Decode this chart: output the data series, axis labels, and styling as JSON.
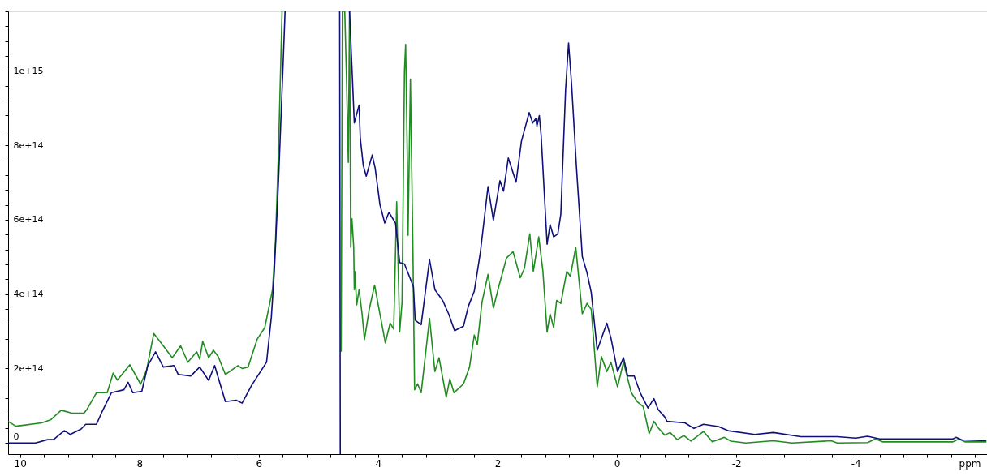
{
  "chart_data": {
    "type": "line",
    "xlabel": "ppm",
    "xlim": [
      10.2,
      -6.2
    ],
    "xticks": [
      10,
      {
        "value": 9.6,
        "label": null
      },
      {
        "value": 9.2,
        "label": null
      },
      {
        "value": 8.8,
        "label": null
      },
      {
        "value": 8.4,
        "label": null
      },
      8,
      {
        "value": 7.6,
        "label": null
      },
      {
        "value": 7.2,
        "label": null
      },
      {
        "value": 6.8,
        "label": null
      },
      {
        "value": 6.4,
        "label": null
      },
      6,
      {
        "value": 5.6,
        "label": null
      },
      {
        "value": 5.2,
        "label": null
      },
      {
        "value": 4.8,
        "label": null
      },
      {
        "value": 4.4,
        "label": null
      },
      4,
      {
        "value": 3.6,
        "label": null
      },
      {
        "value": 3.2,
        "label": null
      },
      {
        "value": 2.8,
        "label": null
      },
      {
        "value": 2.4,
        "label": null
      },
      2,
      {
        "value": 1.6,
        "label": null
      },
      {
        "value": 1.2,
        "label": null
      },
      {
        "value": 0.8,
        "label": null
      },
      {
        "value": 0.4,
        "label": null
      },
      0,
      {
        "value": -0.4,
        "label": null
      },
      {
        "value": -0.8,
        "label": null
      },
      {
        "value": -1.2,
        "label": null
      },
      {
        "value": -1.6,
        "label": null
      },
      -2,
      {
        "value": -2.4,
        "label": null
      },
      {
        "value": -2.8,
        "label": null
      },
      {
        "value": -3.2,
        "label": null
      },
      {
        "value": -3.6,
        "label": null
      },
      -4,
      {
        "value": -4.4,
        "label": null
      },
      {
        "value": -4.8,
        "label": null
      },
      {
        "value": -5.2,
        "label": null
      },
      {
        "value": -5.6,
        "label": null
      },
      {
        "value": -6,
        "label": null
      }
    ],
    "ylim": [
      -30000000000000.0,
      1160000000000000.0
    ],
    "yticks": [
      0,
      {
        "value": 40000000000000.0,
        "label": null
      },
      {
        "value": 80000000000000.0,
        "label": null
      },
      {
        "value": 120000000000000.0,
        "label": null
      },
      {
        "value": 160000000000000.0,
        "label": null
      },
      {
        "value": 200000000000000.0,
        "label": "2e+14"
      },
      {
        "value": 240000000000000.0,
        "label": null
      },
      {
        "value": 280000000000000.0,
        "label": null
      },
      {
        "value": 320000000000000.0,
        "label": null
      },
      {
        "value": 360000000000000.0,
        "label": null
      },
      {
        "value": 400000000000000.0,
        "label": "4e+14"
      },
      {
        "value": 440000000000000.0,
        "label": null
      },
      {
        "value": 480000000000000.0,
        "label": null
      },
      {
        "value": 520000000000000.0,
        "label": null
      },
      {
        "value": 560000000000000.0,
        "label": null
      },
      {
        "value": 600000000000000.0,
        "label": "6e+14"
      },
      {
        "value": 640000000000000.0,
        "label": null
      },
      {
        "value": 680000000000000.0,
        "label": null
      },
      {
        "value": 720000000000000.0,
        "label": null
      },
      {
        "value": 760000000000000.0,
        "label": null
      },
      {
        "value": 800000000000000.0,
        "label": "8e+14"
      },
      {
        "value": 840000000000000.0,
        "label": null
      },
      {
        "value": 880000000000000.0,
        "label": null
      },
      {
        "value": 920000000000000.0,
        "label": null
      },
      {
        "value": 960000000000000.0,
        "label": null
      },
      {
        "value": 1000000000000000.0,
        "label": "1e+15"
      },
      {
        "value": 1040000000000000.0,
        "label": null
      },
      {
        "value": 1080000000000000.0,
        "label": null
      },
      {
        "value": 1120000000000000.0,
        "label": null
      },
      {
        "value": 1160000000000000.0,
        "label": null
      }
    ],
    "grid": false,
    "marker": "none",
    "line_style": "solid",
    "series": [
      {
        "color": "#228b22",
        "x": [
          10.2,
          10.07,
          9.64,
          9.49,
          9.31,
          9.13,
          8.93,
          8.88,
          8.72,
          8.54,
          8.44,
          8.37,
          8.16,
          7.98,
          7.88,
          7.76,
          7.6,
          7.45,
          7.31,
          7.19,
          7.04,
          6.99,
          6.94,
          6.84,
          6.76,
          6.68,
          6.56,
          6.35,
          6.28,
          6.18,
          6.03,
          5.9,
          5.77,
          5.72,
          5.67,
          5.61,
          5.2,
          4.62,
          4.6,
          4.56,
          4.53,
          4.5,
          4.48,
          4.46,
          4.44,
          4.41,
          4.4,
          4.39,
          4.36,
          4.32,
          4.27,
          4.23,
          4.15,
          4.06,
          3.99,
          3.88,
          3.8,
          3.74,
          3.69,
          3.64,
          3.6,
          3.56,
          3.54,
          3.51,
          3.5,
          3.46,
          3.42,
          3.39,
          3.34,
          3.28,
          3.14,
          3.05,
          2.98,
          2.86,
          2.8,
          2.73,
          2.57,
          2.47,
          2.39,
          2.34,
          2.26,
          2.16,
          2.07,
          1.98,
          1.85,
          1.74,
          1.62,
          1.55,
          1.46,
          1.4,
          1.31,
          1.24,
          1.17,
          1.12,
          1.06,
          1.01,
          0.94,
          0.84,
          0.78,
          0.69,
          0.58,
          0.5,
          0.43,
          0.33,
          0.26,
          0.17,
          0.1,
          -0.01,
          -0.11,
          -0.24,
          -0.34,
          -0.44,
          -0.54,
          -0.62,
          -0.69,
          -0.8,
          -0.89,
          -1.01,
          -1.12,
          -1.24,
          -1.45,
          -1.6,
          -1.8,
          -1.91,
          -2.16,
          -2.62,
          -2.93,
          -3.59,
          -3.69,
          -4.2,
          -4.33,
          -4.45,
          -5.63,
          -5.73,
          -5.83,
          -6.19
        ],
        "values": [
          58000000000000.0,
          45000000000000.0,
          54000000000000.0,
          62000000000000.0,
          88000000000000.0,
          80000000000000.0,
          80000000000000.0,
          90000000000000.0,
          135000000000000.0,
          135000000000000.0,
          188000000000000.0,
          169000000000000.0,
          210000000000000.0,
          158000000000000.0,
          196000000000000.0,
          294000000000000.0,
          261000000000000.0,
          229000000000000.0,
          261000000000000.0,
          217000000000000.0,
          245000000000000.0,
          225000000000000.0,
          273000000000000.0,
          229000000000000.0,
          249000000000000.0,
          232000000000000.0,
          184000000000000.0,
          208000000000000.0,
          200000000000000.0,
          204000000000000.0,
          278000000000000.0,
          310000000000000.0,
          412000000000000.0,
          542000000000000.0,
          786000000000000.0,
          1160000000000000.0,
          null,
          245000000000000.0,
          1160000000000000.0,
          1160000000000000.0,
          974000000000000.0,
          754000000000000.0,
          1160000000000000.0,
          526000000000000.0,
          603000000000000.0,
          526000000000000.0,
          412000000000000.0,
          461000000000000.0,
          371000000000000.0,
          412000000000000.0,
          347000000000000.0,
          278000000000000.0,
          359000000000000.0,
          424000000000000.0,
          363000000000000.0,
          269000000000000.0,
          322000000000000.0,
          306000000000000.0,
          648000000000000.0,
          298000000000000.0,
          379000000000000.0,
          998000000000000.0,
          1071000000000000.0,
          746000000000000.0,
          558000000000000.0,
          978000000000000.0,
          542000000000000.0,
          143000000000000.0,
          159000000000000.0,
          135000000000000.0,
          335000000000000.0,
          192000000000000.0,
          229000000000000.0,
          123000000000000.0,
          172000000000000.0,
          135000000000000.0,
          159000000000000.0,
          204000000000000.0,
          290000000000000.0,
          265000000000000.0,
          379000000000000.0,
          453000000000000.0,
          363000000000000.0,
          420000000000000.0,
          497000000000000.0,
          514000000000000.0,
          444000000000000.0,
          469000000000000.0,
          562000000000000.0,
          461000000000000.0,
          554000000000000.0,
          461000000000000.0,
          298000000000000.0,
          347000000000000.0,
          310000000000000.0,
          383000000000000.0,
          375000000000000.0,
          461000000000000.0,
          448000000000000.0,
          526000000000000.0,
          347000000000000.0,
          375000000000000.0,
          359000000000000.0,
          151000000000000.0,
          232000000000000.0,
          192000000000000.0,
          217000000000000.0,
          151000000000000.0,
          217000000000000.0,
          135000000000000.0,
          111000000000000.0,
          98000000000000.0,
          25000000000000.0,
          58000000000000.0,
          41000000000000.0,
          21000000000000.0,
          28000000000000.0,
          9000000000000.0,
          20000000000000.0,
          5000000000000.0,
          31000000000000.0,
          3000000000000.0,
          15000000000000.0,
          5000000000000.0,
          0,
          6000000000000.0,
          0,
          6000000000000.0,
          0,
          1000000000000.0,
          11000000000000.0,
          3000000000000.0,
          3000000000000.0,
          11000000000000.0,
          3000000000000.0,
          3000000000000.0
        ]
      },
      {
        "color": "#10107a",
        "x": [
          10.2,
          9.74,
          9.54,
          9.44,
          9.26,
          9.16,
          8.98,
          8.9,
          8.72,
          8.62,
          8.47,
          8.26,
          8.19,
          8.11,
          7.96,
          7.86,
          7.73,
          7.6,
          7.42,
          7.35,
          7.14,
          6.99,
          6.84,
          6.74,
          6.56,
          6.38,
          6.28,
          6.12,
          5.87,
          5.79,
          5.74,
          5.67,
          5.59,
          5.56,
          5.2,
          4.645,
          4.635,
          4.6,
          4.48,
          4.43,
          4.4,
          4.32,
          4.3,
          4.25,
          4.2,
          4.1,
          4.05,
          3.97,
          3.89,
          3.82,
          3.71,
          3.64,
          3.56,
          3.41,
          3.38,
          3.28,
          3.14,
          3.05,
          2.92,
          2.82,
          2.72,
          2.57,
          2.49,
          2.39,
          2.29,
          2.16,
          2.07,
          1.96,
          1.9,
          1.82,
          1.69,
          1.6,
          1.47,
          1.41,
          1.36,
          1.34,
          1.3,
          1.27,
          1.17,
          1.12,
          1.06,
          0.99,
          0.94,
          0.86,
          0.81,
          0.76,
          0.68,
          0.58,
          0.5,
          0.43,
          0.33,
          0.17,
          0.1,
          -0.01,
          -0.11,
          -0.18,
          -0.29,
          -0.39,
          -0.52,
          -0.62,
          -0.69,
          -0.8,
          -0.84,
          -1.14,
          -1.29,
          -1.45,
          -1.7,
          -1.86,
          -2.31,
          -2.62,
          -3.08,
          -3.69,
          -4.0,
          -4.2,
          -4.4,
          -5.63,
          -5.68,
          -5.78,
          -6.19
        ],
        "values": [
          0,
          0,
          9000000000000.0,
          9000000000000.0,
          33000000000000.0,
          23000000000000.0,
          37000000000000.0,
          50000000000000.0,
          50000000000000.0,
          86000000000000.0,
          135000000000000.0,
          143000000000000.0,
          163000000000000.0,
          135000000000000.0,
          139000000000000.0,
          208000000000000.0,
          245000000000000.0,
          204000000000000.0,
          208000000000000.0,
          184000000000000.0,
          180000000000000.0,
          204000000000000.0,
          168000000000000.0,
          208000000000000.0,
          111000000000000.0,
          115000000000000.0,
          107000000000000.0,
          155000000000000.0,
          217000000000000.0,
          338000000000000.0,
          461000000000000.0,
          705000000000000.0,
          1030000000000000.0,
          1160000000000000.0,
          null,
          1160000000000000.0,
          -30000000000000.0,
          null,
          1160000000000000.0,
          974000000000000.0,
          860000000000000.0,
          908000000000000.0,
          819000000000000.0,
          746000000000000.0,
          717000000000000.0,
          774000000000000.0,
          738000000000000.0,
          640000000000000.0,
          591000000000000.0,
          620000000000000.0,
          591000000000000.0,
          485000000000000.0,
          481000000000000.0,
          420000000000000.0,
          330000000000000.0,
          318000000000000.0,
          493000000000000.0,
          412000000000000.0,
          383000000000000.0,
          347000000000000.0,
          302000000000000.0,
          314000000000000.0,
          367000000000000.0,
          408000000000000.0,
          510000000000000.0,
          689000000000000.0,
          599000000000000.0,
          705000000000000.0,
          677000000000000.0,
          766000000000000.0,
          701000000000000.0,
          811000000000000.0,
          888000000000000.0,
          860000000000000.0,
          872000000000000.0,
          852000000000000.0,
          880000000000000.0,
          827000000000000.0,
          534000000000000.0,
          587000000000000.0,
          554000000000000.0,
          562000000000000.0,
          615000000000000.0,
          949000000000000.0,
          1075000000000000.0,
          965000000000000.0,
          746000000000000.0,
          501000000000000.0,
          457000000000000.0,
          404000000000000.0,
          249000000000000.0,
          322000000000000.0,
          282000000000000.0,
          192000000000000.0,
          229000000000000.0,
          180000000000000.0,
          180000000000000.0,
          135000000000000.0,
          94000000000000.0,
          119000000000000.0,
          90000000000000.0,
          70000000000000.0,
          58000000000000.0,
          54000000000000.0,
          39000000000000.0,
          50000000000000.0,
          44000000000000.0,
          33000000000000.0,
          23000000000000.0,
          28000000000000.0,
          17000000000000.0,
          17000000000000.0,
          13000000000000.0,
          18000000000000.0,
          11000000000000.0,
          11000000000000.0,
          15000000000000.0,
          8000000000000.0,
          6000000000000.0
        ]
      }
    ]
  }
}
